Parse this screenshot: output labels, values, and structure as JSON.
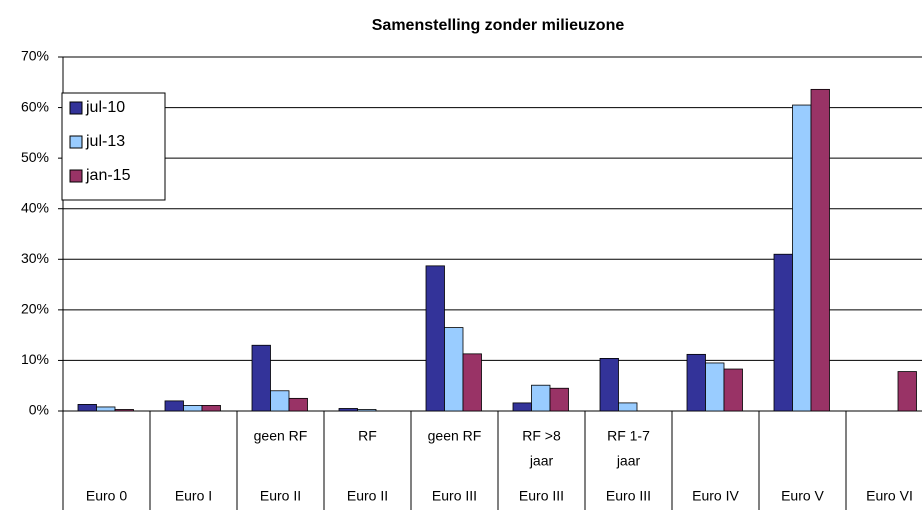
{
  "chart_data": {
    "type": "bar",
    "title": "Samenstelling  zonder milieuzone",
    "categories": [
      "Euro 0",
      "Euro I",
      "Euro II",
      "Euro II",
      "Euro III",
      "Euro III",
      "Euro III",
      "Euro IV",
      "Euro V",
      "Euro VI"
    ],
    "sublabels": [
      null,
      null,
      [
        "geen RF"
      ],
      [
        "RF"
      ],
      [
        "geen RF"
      ],
      [
        "RF >8",
        "jaar"
      ],
      [
        "RF 1-7",
        "jaar"
      ],
      null,
      null,
      null
    ],
    "series": [
      {
        "name": "jul-10",
        "color": "#333399",
        "values": [
          1.3,
          2.0,
          13.0,
          0.5,
          28.7,
          1.6,
          10.4,
          11.2,
          31.0,
          0
        ]
      },
      {
        "name": "jul-13",
        "color": "#99ccff",
        "values": [
          0.8,
          1.1,
          4.0,
          0.3,
          16.5,
          5.1,
          1.6,
          9.5,
          60.5,
          0
        ]
      },
      {
        "name": "jan-15",
        "color": "#993366",
        "values": [
          0.3,
          1.1,
          2.5,
          0,
          11.3,
          4.5,
          0,
          8.3,
          63.6,
          7.8
        ]
      }
    ],
    "ylim": [
      0,
      70
    ],
    "yticks": [
      {
        "value": 0,
        "label": "0%"
      },
      {
        "value": 10,
        "label": "10%"
      },
      {
        "value": 20,
        "label": "20%"
      },
      {
        "value": 30,
        "label": "30%"
      },
      {
        "value": 40,
        "label": "40%"
      },
      {
        "value": 50,
        "label": "50%"
      },
      {
        "value": 60,
        "label": "60%"
      },
      {
        "value": 70,
        "label": "70%"
      }
    ],
    "grid": true,
    "legend": "upper-left"
  }
}
